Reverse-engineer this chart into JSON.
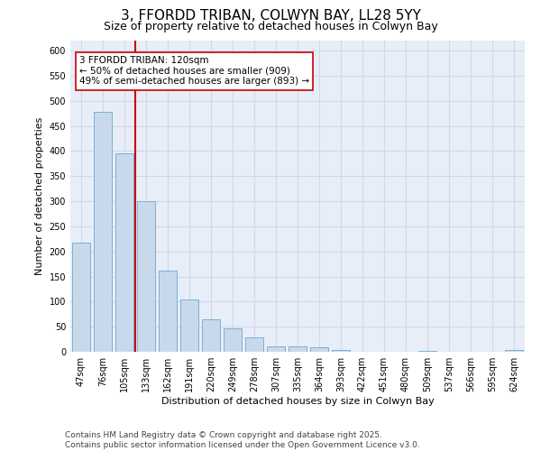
{
  "title_line1": "3, FFORDD TRIBAN, COLWYN BAY, LL28 5YY",
  "title_line2": "Size of property relative to detached houses in Colwyn Bay",
  "xlabel": "Distribution of detached houses by size in Colwyn Bay",
  "ylabel": "Number of detached properties",
  "categories": [
    "47sqm",
    "76sqm",
    "105sqm",
    "133sqm",
    "162sqm",
    "191sqm",
    "220sqm",
    "249sqm",
    "278sqm",
    "307sqm",
    "335sqm",
    "364sqm",
    "393sqm",
    "422sqm",
    "451sqm",
    "480sqm",
    "509sqm",
    "537sqm",
    "566sqm",
    "595sqm",
    "624sqm"
  ],
  "values": [
    218,
    478,
    396,
    300,
    162,
    105,
    64,
    46,
    29,
    10,
    10,
    9,
    4,
    0,
    0,
    0,
    2,
    0,
    0,
    0,
    3
  ],
  "bar_color": "#c9d9ec",
  "bar_edge_color": "#7bafd4",
  "grid_color": "#d0d8e8",
  "background_color": "#e8eef8",
  "vline_x_index": 2.5,
  "vline_color": "#cc0000",
  "annotation_text": "3 FFORDD TRIBAN: 120sqm\n← 50% of detached houses are smaller (909)\n49% of semi-detached houses are larger (893) →",
  "annotation_box_color": "#ffffff",
  "annotation_box_edge_color": "#cc0000",
  "ylim": [
    0,
    620
  ],
  "yticks": [
    0,
    50,
    100,
    150,
    200,
    250,
    300,
    350,
    400,
    450,
    500,
    550,
    600
  ],
  "footer_line1": "Contains HM Land Registry data © Crown copyright and database right 2025.",
  "footer_line2": "Contains public sector information licensed under the Open Government Licence v3.0.",
  "title_fontsize": 11,
  "subtitle_fontsize": 9,
  "axis_label_fontsize": 8,
  "tick_fontsize": 7,
  "annotation_fontsize": 7.5,
  "footer_fontsize": 6.5
}
